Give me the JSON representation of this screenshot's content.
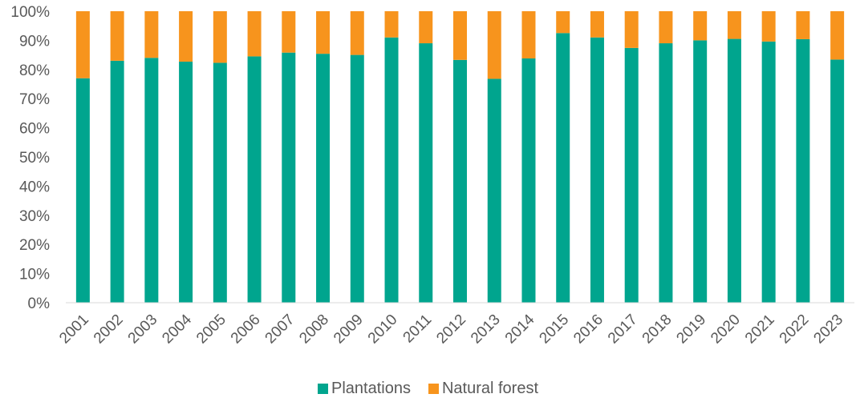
{
  "chart_data": {
    "type": "bar",
    "stacked": true,
    "categories": [
      "2001",
      "2002",
      "2003",
      "2004",
      "2005",
      "2006",
      "2007",
      "2008",
      "2009",
      "2010",
      "2011",
      "2012",
      "2013",
      "2014",
      "2015",
      "2016",
      "2017",
      "2018",
      "2019",
      "2020",
      "2021",
      "2022",
      "2023"
    ],
    "series": [
      {
        "name": "Plantations",
        "color": "#00a58e",
        "values": [
          77,
          83,
          84,
          82.7,
          82.3,
          84.5,
          85.8,
          85.4,
          85,
          91,
          89,
          83.3,
          76.8,
          83.8,
          92.5,
          91,
          87.4,
          89,
          90,
          90.5,
          89.6,
          90.4,
          83.4
        ]
      },
      {
        "name": "Natural forest",
        "color": "#f7941d",
        "values": [
          23,
          17,
          16,
          17.3,
          17.7,
          15.5,
          14.2,
          14.6,
          15,
          9,
          11,
          16.7,
          23.2,
          16.2,
          7.5,
          9,
          12.6,
          11,
          10,
          9.5,
          10.4,
          9.6,
          16.6
        ]
      }
    ],
    "yticks": [
      "0%",
      "10%",
      "20%",
      "30%",
      "40%",
      "50%",
      "60%",
      "70%",
      "80%",
      "90%",
      "100%"
    ],
    "ylim": [
      0,
      100
    ],
    "grid": false,
    "legend_position": "bottom",
    "title": "",
    "xlabel": "",
    "ylabel": ""
  }
}
